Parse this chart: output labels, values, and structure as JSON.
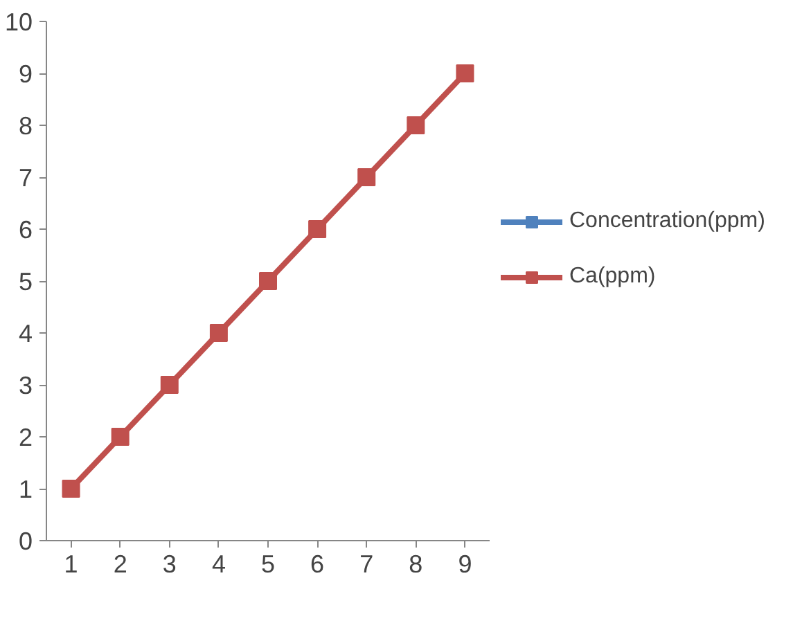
{
  "chart_data": {
    "type": "line",
    "categories": [
      "1",
      "2",
      "3",
      "4",
      "5",
      "6",
      "7",
      "8",
      "9"
    ],
    "series": [
      {
        "name": "Concentration(ppm)",
        "color": "#4f81bd",
        "values": [
          null,
          null,
          null,
          null,
          null,
          null,
          null,
          null,
          null
        ]
      },
      {
        "name": "Ca(ppm)",
        "color": "#c0504d",
        "values": [
          1,
          2,
          3,
          4,
          5,
          6,
          7,
          8,
          9
        ]
      }
    ],
    "ylim": [
      0,
      10
    ],
    "yticks": [
      0,
      1,
      2,
      3,
      4,
      5,
      6,
      7,
      8,
      9,
      10
    ],
    "legend": "right",
    "marker": "square",
    "line_style": "solid"
  }
}
